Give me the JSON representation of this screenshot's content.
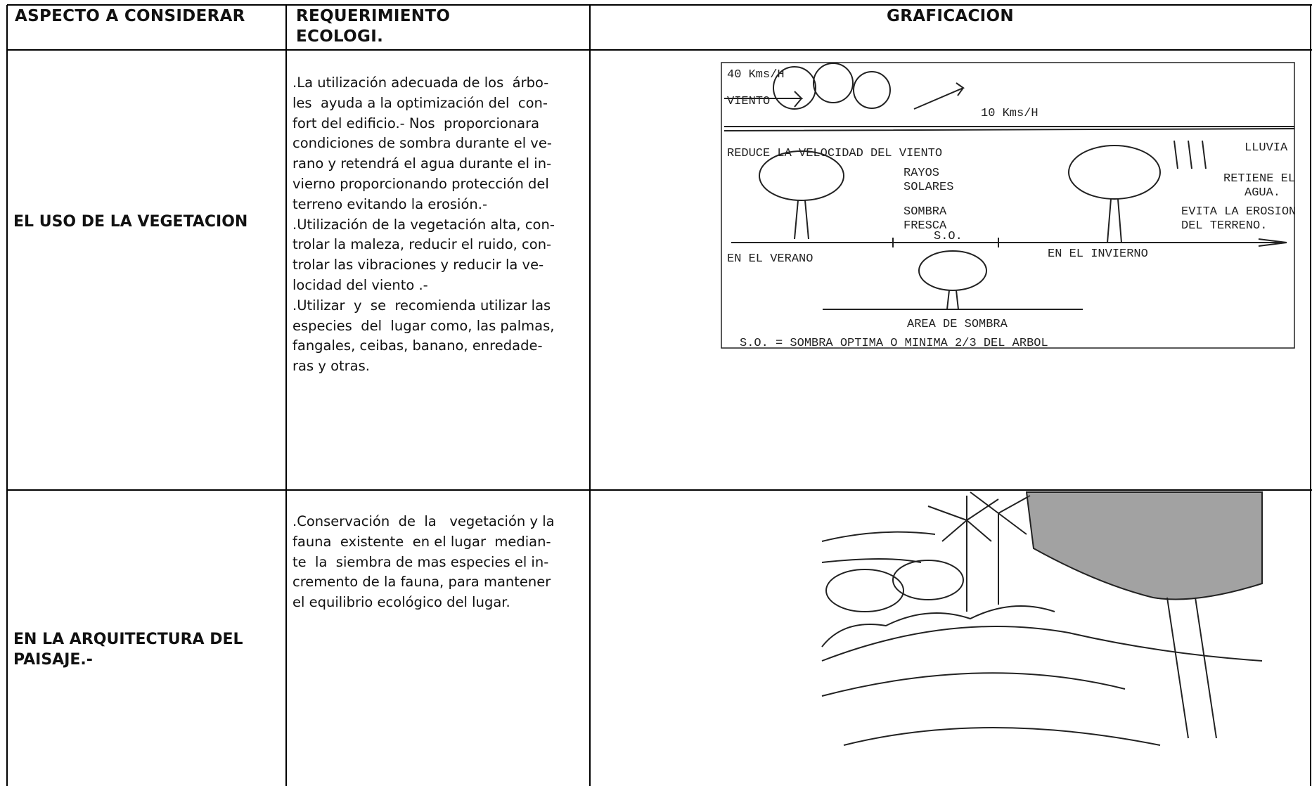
{
  "table": {
    "headers": [
      "ASPECTO A CONSIDERAR",
      [
        "REQUERIMIENTO",
        "ECOLOGI."
      ],
      "GRAFICACION"
    ],
    "rows": [
      {
        "aspect": [
          "EL USO DE LA VEGETACION"
        ],
        "requirement": [
          ".La utilización adecuada de los  árbo-",
          "les  ayuda a la optimización del  con-",
          "fort del edificio.- Nos  proporcionara",
          "condiciones de sombra durante el ve-",
          "rano y retendrá el agua durante el in-",
          "vierno proporcionando protección del",
          "terreno evitando la erosión.-",
          ".Utilización de la vegetación alta, con-",
          "trolar la maleza, reducir el ruido, con-",
          "trolar las vibraciones y reducir la ve-",
          "locidad del viento .-",
          ".Utilizar  y  se  recomienda utilizar las",
          "especies  del  lugar como, las palmas,",
          "fangales, ceibas, banano, enredade-",
          "ras y otras."
        ],
        "sketch_labels": [
          "40 Kms/H",
          "VIENTO",
          "10 Kms/H",
          "REDUCE LA VELOCIDAD DEL VIENTO",
          "LLUVIA",
          "RAYOS",
          "SOLARES",
          "RETIENE EL",
          "AGUA.",
          "SOMBRA",
          "FRESCA",
          "EVITA LA EROSION",
          "DEL TERRENO.",
          "S.O.",
          "EN EL VERANO",
          "EN EL INVIERNO",
          "AREA DE SOMBRA",
          "S.O. = SOMBRA OPTIMA O MINIMA 2/3 DEL ARBOL"
        ]
      },
      {
        "aspect": [
          "EN LA ARQUITECTURA DEL",
          "PAISAJE.-"
        ],
        "requirement": [
          ".Conservación  de  la   vegetación y la",
          "fauna  existente  en el lugar  median-",
          "te  la  siembra de mas especies el in-",
          "cremento de la fauna, para mantener",
          "el equilibrio ecológico del lugar."
        ]
      }
    ]
  }
}
